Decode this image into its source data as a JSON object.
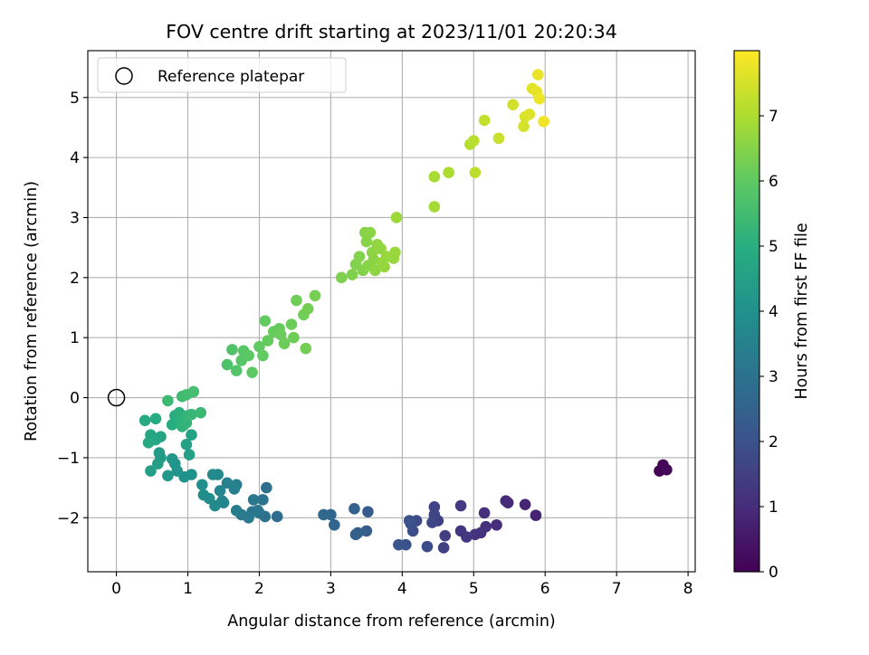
{
  "chart_data": {
    "type": "scatter",
    "title": "FOV centre drift starting at 2023/11/01 20:20:34",
    "xlabel": "Angular distance from reference (arcmin)",
    "ylabel": "Rotation from reference (arcmin)",
    "xlim": [
      -0.4,
      8.1
    ],
    "ylim": [
      -2.9,
      5.78
    ],
    "xticks": [
      0,
      1,
      2,
      3,
      4,
      5,
      6,
      7,
      8
    ],
    "yticks": [
      -2,
      -1,
      0,
      1,
      2,
      3,
      4,
      5
    ],
    "grid": true,
    "legend": {
      "placement": "top-left",
      "entries": [
        "Reference platepar"
      ]
    },
    "reference_point": {
      "x": 0,
      "y": 0
    },
    "colorbar": {
      "label": "Hours from first FF file",
      "min": 0,
      "max": 8,
      "ticks": [
        0,
        1,
        2,
        3,
        4,
        5,
        6,
        7
      ],
      "colormap": "viridis"
    },
    "points": [
      {
        "x": 7.6,
        "y": -1.22,
        "h": 0.05
      },
      {
        "x": 7.65,
        "y": -1.12,
        "h": 0.1
      },
      {
        "x": 7.7,
        "y": -1.2,
        "h": 0.15
      },
      {
        "x": 5.87,
        "y": -1.96,
        "h": 0.8
      },
      {
        "x": 5.72,
        "y": -1.78,
        "h": 0.85
      },
      {
        "x": 5.48,
        "y": -1.75,
        "h": 0.9
      },
      {
        "x": 5.45,
        "y": -1.72,
        "h": 0.95
      },
      {
        "x": 5.32,
        "y": -2.12,
        "h": 1.0
      },
      {
        "x": 5.15,
        "y": -1.92,
        "h": 1.05
      },
      {
        "x": 5.17,
        "y": -2.15,
        "h": 1.1
      },
      {
        "x": 5.1,
        "y": -2.25,
        "h": 1.15
      },
      {
        "x": 5.02,
        "y": -2.28,
        "h": 1.2
      },
      {
        "x": 4.9,
        "y": -2.32,
        "h": 1.25
      },
      {
        "x": 4.82,
        "y": -2.22,
        "h": 1.3
      },
      {
        "x": 4.82,
        "y": -1.8,
        "h": 1.35
      },
      {
        "x": 4.6,
        "y": -2.3,
        "h": 1.45
      },
      {
        "x": 4.58,
        "y": -2.5,
        "h": 1.5
      },
      {
        "x": 4.5,
        "y": -2.05,
        "h": 1.55
      },
      {
        "x": 4.45,
        "y": -1.82,
        "h": 1.6
      },
      {
        "x": 4.45,
        "y": -1.95,
        "h": 1.65
      },
      {
        "x": 4.42,
        "y": -2.08,
        "h": 1.7
      },
      {
        "x": 4.35,
        "y": -2.48,
        "h": 1.8
      },
      {
        "x": 4.2,
        "y": -2.05,
        "h": 1.85
      },
      {
        "x": 4.15,
        "y": -2.22,
        "h": 1.9
      },
      {
        "x": 4.12,
        "y": -2.1,
        "h": 1.95
      },
      {
        "x": 4.1,
        "y": -2.05,
        "h": 2.0
      },
      {
        "x": 4.05,
        "y": -2.45,
        "h": 2.05
      },
      {
        "x": 3.95,
        "y": -2.45,
        "h": 2.1
      },
      {
        "x": 3.52,
        "y": -1.9,
        "h": 2.3
      },
      {
        "x": 3.5,
        "y": -2.22,
        "h": 2.35
      },
      {
        "x": 3.38,
        "y": -2.25,
        "h": 2.4
      },
      {
        "x": 3.35,
        "y": -2.28,
        "h": 2.45
      },
      {
        "x": 3.33,
        "y": -1.85,
        "h": 2.5
      },
      {
        "x": 3.05,
        "y": -2.12,
        "h": 2.6
      },
      {
        "x": 3.0,
        "y": -1.95,
        "h": 2.65
      },
      {
        "x": 2.9,
        "y": -1.95,
        "h": 2.7
      },
      {
        "x": 2.25,
        "y": -1.98,
        "h": 2.85
      },
      {
        "x": 2.1,
        "y": -1.5,
        "h": 2.9
      },
      {
        "x": 2.08,
        "y": -1.98,
        "h": 2.95
      },
      {
        "x": 2.05,
        "y": -1.7,
        "h": 3.0
      },
      {
        "x": 2.0,
        "y": -1.92,
        "h": 3.05
      },
      {
        "x": 1.98,
        "y": -1.88,
        "h": 3.1
      },
      {
        "x": 1.92,
        "y": -1.7,
        "h": 3.15
      },
      {
        "x": 1.9,
        "y": -1.9,
        "h": 3.2
      },
      {
        "x": 1.85,
        "y": -2.0,
        "h": 3.25
      },
      {
        "x": 1.75,
        "y": -1.95,
        "h": 3.3
      },
      {
        "x": 1.68,
        "y": -1.88,
        "h": 3.35
      },
      {
        "x": 1.68,
        "y": -1.45,
        "h": 3.4
      },
      {
        "x": 1.65,
        "y": -1.52,
        "h": 3.45
      },
      {
        "x": 1.55,
        "y": -1.42,
        "h": 3.5
      },
      {
        "x": 1.5,
        "y": -1.75,
        "h": 3.55
      },
      {
        "x": 1.48,
        "y": -1.72,
        "h": 3.6
      },
      {
        "x": 1.45,
        "y": -1.55,
        "h": 3.65
      },
      {
        "x": 1.42,
        "y": -1.28,
        "h": 3.7
      },
      {
        "x": 1.38,
        "y": -1.8,
        "h": 3.75
      },
      {
        "x": 1.35,
        "y": -1.28,
        "h": 3.8
      },
      {
        "x": 1.3,
        "y": -1.68,
        "h": 3.85
      },
      {
        "x": 1.22,
        "y": -1.62,
        "h": 3.9
      },
      {
        "x": 1.2,
        "y": -1.45,
        "h": 3.95
      },
      {
        "x": 1.05,
        "y": -1.28,
        "h": 4.0
      },
      {
        "x": 0.95,
        "y": -1.32,
        "h": 4.05
      },
      {
        "x": 0.85,
        "y": -1.22,
        "h": 4.1
      },
      {
        "x": 0.82,
        "y": -1.1,
        "h": 4.15
      },
      {
        "x": 0.78,
        "y": -1.02,
        "h": 4.2
      },
      {
        "x": 0.72,
        "y": -1.3,
        "h": 4.25
      },
      {
        "x": 0.62,
        "y": -1.0,
        "h": 4.3
      },
      {
        "x": 0.6,
        "y": -0.92,
        "h": 4.35
      },
      {
        "x": 0.58,
        "y": -1.1,
        "h": 4.4
      },
      {
        "x": 0.48,
        "y": -1.22,
        "h": 4.45
      },
      {
        "x": 1.02,
        "y": -0.95,
        "h": 4.5
      },
      {
        "x": 0.98,
        "y": -0.78,
        "h": 4.55
      },
      {
        "x": 1.05,
        "y": -0.62,
        "h": 4.6
      },
      {
        "x": 0.62,
        "y": -0.65,
        "h": 4.65
      },
      {
        "x": 0.55,
        "y": -0.7,
        "h": 4.7
      },
      {
        "x": 0.48,
        "y": -0.62,
        "h": 4.75
      },
      {
        "x": 0.45,
        "y": -0.75,
        "h": 4.8
      },
      {
        "x": 0.4,
        "y": -0.38,
        "h": 4.85
      },
      {
        "x": 0.55,
        "y": -0.35,
        "h": 4.9
      },
      {
        "x": 0.78,
        "y": -0.45,
        "h": 4.95
      },
      {
        "x": 0.82,
        "y": -0.3,
        "h": 5.0
      },
      {
        "x": 0.88,
        "y": -0.25,
        "h": 5.05
      },
      {
        "x": 0.9,
        "y": -0.35,
        "h": 5.1
      },
      {
        "x": 0.92,
        "y": -0.48,
        "h": 5.15
      },
      {
        "x": 0.98,
        "y": -0.42,
        "h": 5.2
      },
      {
        "x": 1.0,
        "y": -0.3,
        "h": 5.25
      },
      {
        "x": 1.05,
        "y": -0.28,
        "h": 5.3
      },
      {
        "x": 1.18,
        "y": -0.25,
        "h": 5.35
      },
      {
        "x": 0.72,
        "y": -0.05,
        "h": 5.4
      },
      {
        "x": 0.92,
        "y": 0.02,
        "h": 5.45
      },
      {
        "x": 0.98,
        "y": 0.05,
        "h": 5.5
      },
      {
        "x": 1.08,
        "y": 0.1,
        "h": 5.55
      },
      {
        "x": 1.55,
        "y": 0.55,
        "h": 5.7
      },
      {
        "x": 1.62,
        "y": 0.8,
        "h": 5.75
      },
      {
        "x": 1.68,
        "y": 0.45,
        "h": 5.8
      },
      {
        "x": 1.75,
        "y": 0.62,
        "h": 5.85
      },
      {
        "x": 1.78,
        "y": 0.78,
        "h": 5.9
      },
      {
        "x": 1.85,
        "y": 0.7,
        "h": 5.95
      },
      {
        "x": 1.9,
        "y": 0.42,
        "h": 6.0
      },
      {
        "x": 2.0,
        "y": 0.85,
        "h": 6.02
      },
      {
        "x": 2.05,
        "y": 0.7,
        "h": 6.04
      },
      {
        "x": 2.08,
        "y": 1.28,
        "h": 6.06
      },
      {
        "x": 2.12,
        "y": 0.95,
        "h": 6.08
      },
      {
        "x": 2.2,
        "y": 1.1,
        "h": 6.1
      },
      {
        "x": 2.28,
        "y": 1.15,
        "h": 6.12
      },
      {
        "x": 2.3,
        "y": 1.05,
        "h": 6.14
      },
      {
        "x": 2.35,
        "y": 0.9,
        "h": 6.16
      },
      {
        "x": 2.45,
        "y": 1.22,
        "h": 6.18
      },
      {
        "x": 2.48,
        "y": 1.0,
        "h": 6.2
      },
      {
        "x": 2.52,
        "y": 1.62,
        "h": 6.22
      },
      {
        "x": 2.62,
        "y": 1.38,
        "h": 6.24
      },
      {
        "x": 2.65,
        "y": 0.82,
        "h": 6.26
      },
      {
        "x": 2.68,
        "y": 1.48,
        "h": 6.28
      },
      {
        "x": 2.78,
        "y": 1.7,
        "h": 6.3
      },
      {
        "x": 3.15,
        "y": 2.0,
        "h": 6.4
      },
      {
        "x": 3.3,
        "y": 2.05,
        "h": 6.42
      },
      {
        "x": 3.35,
        "y": 2.22,
        "h": 6.44
      },
      {
        "x": 3.4,
        "y": 2.35,
        "h": 6.46
      },
      {
        "x": 3.45,
        "y": 2.12,
        "h": 6.48
      },
      {
        "x": 3.48,
        "y": 2.75,
        "h": 6.5
      },
      {
        "x": 3.5,
        "y": 2.6,
        "h": 6.52
      },
      {
        "x": 3.52,
        "y": 2.2,
        "h": 6.54
      },
      {
        "x": 3.55,
        "y": 2.75,
        "h": 6.56
      },
      {
        "x": 3.58,
        "y": 2.42,
        "h": 6.58
      },
      {
        "x": 3.6,
        "y": 2.3,
        "h": 6.6
      },
      {
        "x": 3.62,
        "y": 2.12,
        "h": 6.62
      },
      {
        "x": 3.65,
        "y": 2.55,
        "h": 6.64
      },
      {
        "x": 3.7,
        "y": 2.48,
        "h": 6.66
      },
      {
        "x": 3.72,
        "y": 2.25,
        "h": 6.68
      },
      {
        "x": 3.75,
        "y": 2.18,
        "h": 6.7
      },
      {
        "x": 3.78,
        "y": 2.35,
        "h": 6.72
      },
      {
        "x": 3.88,
        "y": 2.32,
        "h": 6.74
      },
      {
        "x": 3.9,
        "y": 2.42,
        "h": 6.76
      },
      {
        "x": 3.92,
        "y": 3.0,
        "h": 6.8
      },
      {
        "x": 4.45,
        "y": 3.18,
        "h": 6.9
      },
      {
        "x": 4.45,
        "y": 3.68,
        "h": 6.95
      },
      {
        "x": 4.65,
        "y": 3.75,
        "h": 7.0
      },
      {
        "x": 4.95,
        "y": 4.22,
        "h": 7.1
      },
      {
        "x": 5.0,
        "y": 4.28,
        "h": 7.15
      },
      {
        "x": 5.02,
        "y": 3.75,
        "h": 7.2
      },
      {
        "x": 5.15,
        "y": 4.62,
        "h": 7.3
      },
      {
        "x": 5.35,
        "y": 4.32,
        "h": 7.35
      },
      {
        "x": 5.55,
        "y": 4.88,
        "h": 7.45
      },
      {
        "x": 5.7,
        "y": 4.52,
        "h": 7.5
      },
      {
        "x": 5.72,
        "y": 4.68,
        "h": 7.55
      },
      {
        "x": 5.78,
        "y": 4.72,
        "h": 7.6
      },
      {
        "x": 5.82,
        "y": 5.15,
        "h": 7.65
      },
      {
        "x": 5.88,
        "y": 5.1,
        "h": 7.7
      },
      {
        "x": 5.9,
        "y": 5.38,
        "h": 7.75
      },
      {
        "x": 5.92,
        "y": 4.98,
        "h": 7.8
      },
      {
        "x": 5.98,
        "y": 4.6,
        "h": 7.85
      }
    ]
  }
}
